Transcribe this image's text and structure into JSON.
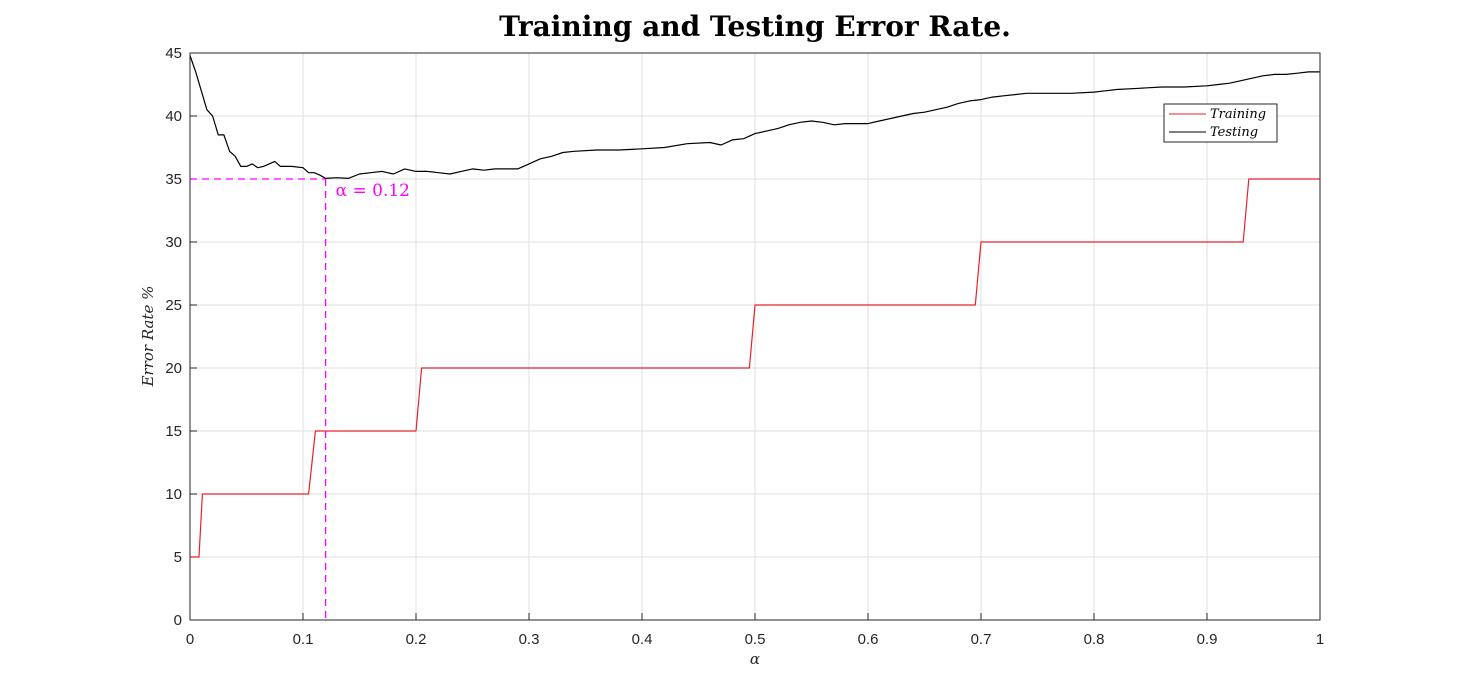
{
  "chart_data": {
    "type": "line",
    "title": "Training and Testing Error Rate.",
    "xlabel": "α",
    "ylabel": "Error Rate %",
    "xlim": [
      0,
      1
    ],
    "ylim": [
      0,
      45
    ],
    "x_ticks": [
      "0",
      "0.1",
      "0.2",
      "0.3",
      "0.4",
      "0.5",
      "0.6",
      "0.7",
      "0.8",
      "0.9",
      "1"
    ],
    "y_ticks": [
      "0",
      "5",
      "10",
      "15",
      "20",
      "25",
      "30",
      "35",
      "40",
      "45"
    ],
    "grid": true,
    "legend_position": "top-right",
    "series": [
      {
        "name": "Training",
        "color": "#e8202a",
        "points": [
          [
            0,
            5
          ],
          [
            0.008,
            5
          ],
          [
            0.011,
            10
          ],
          [
            0.105,
            10
          ],
          [
            0.111,
            15
          ],
          [
            0.2,
            15
          ],
          [
            0.205,
            20
          ],
          [
            0.495,
            20
          ],
          [
            0.5,
            25
          ],
          [
            0.695,
            25
          ],
          [
            0.7,
            30
          ],
          [
            0.932,
            30
          ],
          [
            0.937,
            35
          ],
          [
            1,
            35
          ]
        ]
      },
      {
        "name": "Testing",
        "color": "#000000",
        "points": [
          [
            0,
            44.8
          ],
          [
            0.005,
            43.5
          ],
          [
            0.01,
            42
          ],
          [
            0.015,
            40.5
          ],
          [
            0.02,
            40
          ],
          [
            0.025,
            38.5
          ],
          [
            0.03,
            38.5
          ],
          [
            0.035,
            37.2
          ],
          [
            0.04,
            36.8
          ],
          [
            0.045,
            36
          ],
          [
            0.05,
            36
          ],
          [
            0.055,
            36.2
          ],
          [
            0.06,
            35.9
          ],
          [
            0.065,
            36
          ],
          [
            0.07,
            36.2
          ],
          [
            0.075,
            36.4
          ],
          [
            0.08,
            36
          ],
          [
            0.09,
            36
          ],
          [
            0.1,
            35.9
          ],
          [
            0.105,
            35.5
          ],
          [
            0.11,
            35.5
          ],
          [
            0.115,
            35.3
          ],
          [
            0.12,
            35.05
          ],
          [
            0.13,
            35.1
          ],
          [
            0.14,
            35.05
          ],
          [
            0.15,
            35.4
          ],
          [
            0.16,
            35.5
          ],
          [
            0.17,
            35.6
          ],
          [
            0.18,
            35.4
          ],
          [
            0.19,
            35.8
          ],
          [
            0.2,
            35.6
          ],
          [
            0.21,
            35.6
          ],
          [
            0.22,
            35.5
          ],
          [
            0.23,
            35.4
          ],
          [
            0.24,
            35.6
          ],
          [
            0.25,
            35.8
          ],
          [
            0.26,
            35.7
          ],
          [
            0.27,
            35.8
          ],
          [
            0.28,
            35.8
          ],
          [
            0.29,
            35.8
          ],
          [
            0.3,
            36.2
          ],
          [
            0.31,
            36.6
          ],
          [
            0.32,
            36.8
          ],
          [
            0.33,
            37.1
          ],
          [
            0.34,
            37.2
          ],
          [
            0.36,
            37.3
          ],
          [
            0.38,
            37.3
          ],
          [
            0.4,
            37.4
          ],
          [
            0.42,
            37.5
          ],
          [
            0.44,
            37.8
          ],
          [
            0.46,
            37.9
          ],
          [
            0.47,
            37.7
          ],
          [
            0.48,
            38.1
          ],
          [
            0.49,
            38.2
          ],
          [
            0.5,
            38.6
          ],
          [
            0.51,
            38.8
          ],
          [
            0.52,
            39
          ],
          [
            0.53,
            39.3
          ],
          [
            0.54,
            39.5
          ],
          [
            0.55,
            39.6
          ],
          [
            0.56,
            39.5
          ],
          [
            0.57,
            39.3
          ],
          [
            0.58,
            39.4
          ],
          [
            0.59,
            39.4
          ],
          [
            0.6,
            39.4
          ],
          [
            0.61,
            39.6
          ],
          [
            0.62,
            39.8
          ],
          [
            0.63,
            40
          ],
          [
            0.64,
            40.2
          ],
          [
            0.65,
            40.3
          ],
          [
            0.66,
            40.5
          ],
          [
            0.67,
            40.7
          ],
          [
            0.68,
            41
          ],
          [
            0.69,
            41.2
          ],
          [
            0.7,
            41.3
          ],
          [
            0.71,
            41.5
          ],
          [
            0.72,
            41.6
          ],
          [
            0.73,
            41.7
          ],
          [
            0.74,
            41.8
          ],
          [
            0.76,
            41.8
          ],
          [
            0.78,
            41.8
          ],
          [
            0.8,
            41.9
          ],
          [
            0.81,
            42
          ],
          [
            0.82,
            42.1
          ],
          [
            0.84,
            42.2
          ],
          [
            0.86,
            42.3
          ],
          [
            0.88,
            42.3
          ],
          [
            0.9,
            42.4
          ],
          [
            0.91,
            42.5
          ],
          [
            0.92,
            42.6
          ],
          [
            0.93,
            42.8
          ],
          [
            0.94,
            43
          ],
          [
            0.95,
            43.2
          ],
          [
            0.96,
            43.3
          ],
          [
            0.97,
            43.3
          ],
          [
            0.98,
            43.4
          ],
          [
            0.99,
            43.5
          ],
          [
            1,
            43.5
          ]
        ]
      }
    ],
    "annotation": {
      "text": "α = 0.12",
      "x": 0.12,
      "y": 35,
      "color": "#ff00ff"
    }
  }
}
